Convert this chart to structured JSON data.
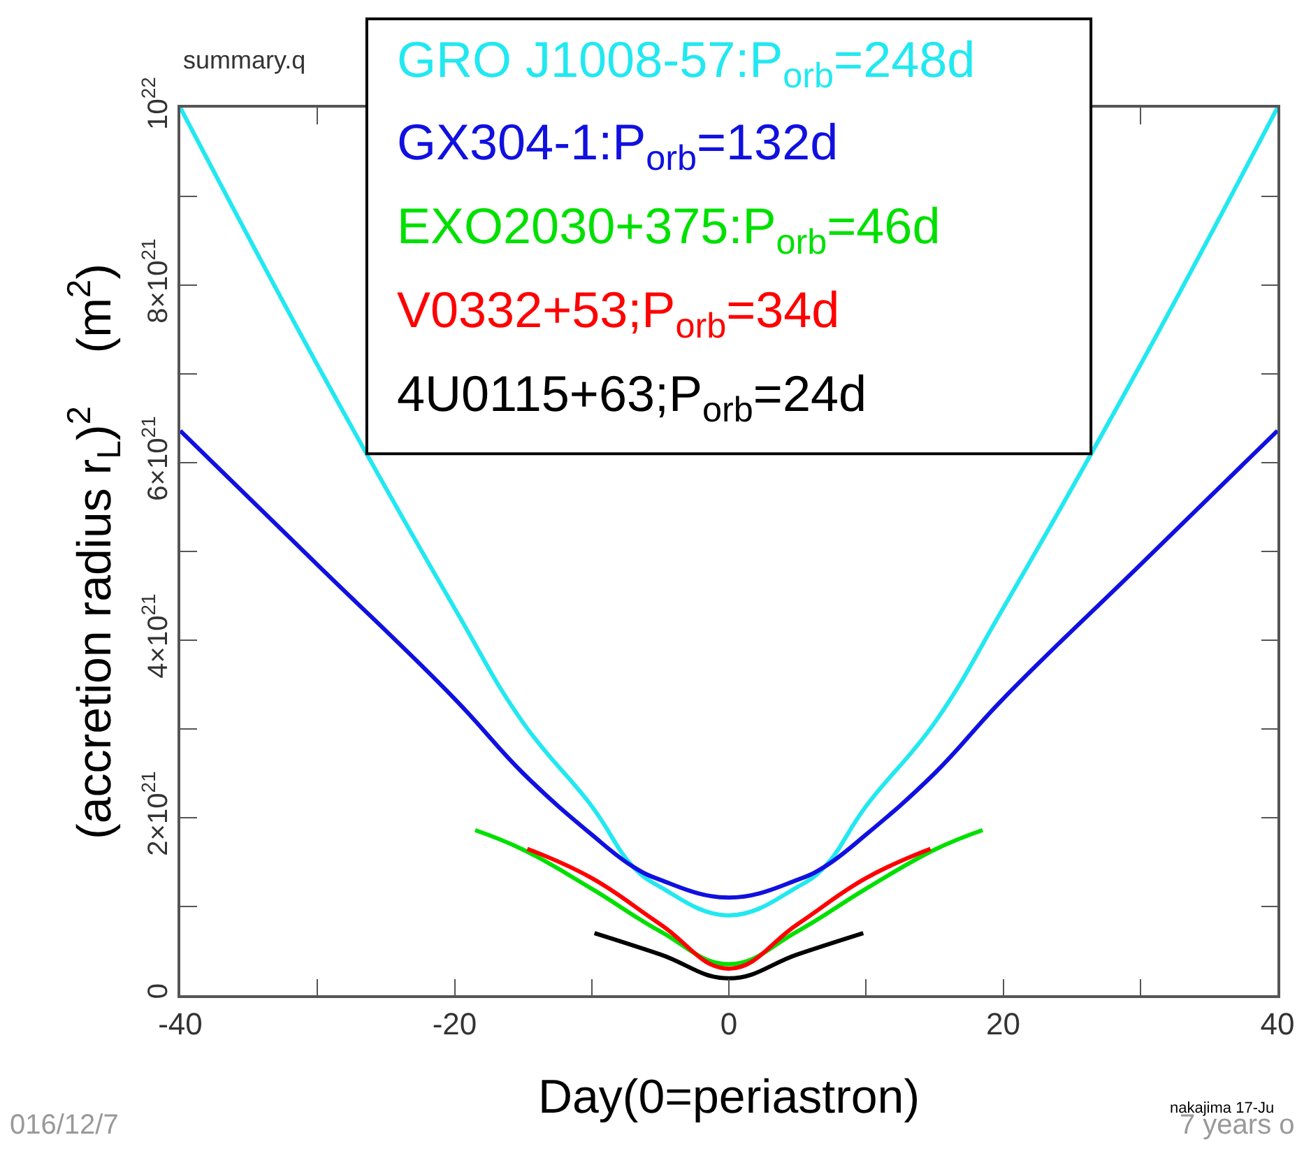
{
  "chart_data": {
    "type": "line",
    "xlabel": "Day(0=periastron)",
    "ylabel": "(accretion radius r$_{L}$)$^{2}$    (m$^{2}$)",
    "xlim": [
      -40,
      40
    ],
    "xticks": [
      -40,
      {
        "value": -30,
        "label": null
      },
      -20,
      {
        "value": -10,
        "label": null
      },
      0,
      {
        "value": 10,
        "label": null
      },
      20,
      {
        "value": 30,
        "label": null
      },
      40
    ],
    "ylim": [
      0,
      1e+22
    ],
    "yticks": [
      0,
      {
        "value": 1e+21,
        "label": null
      },
      {
        "value": 2e+21,
        "label": "2×10$^{21}$"
      },
      {
        "value": 3e+21,
        "label": null
      },
      {
        "value": 4e+21,
        "label": "4×10$^{21}$"
      },
      {
        "value": 5e+21,
        "label": null
      },
      {
        "value": 6e+21,
        "label": "6×10$^{21}$"
      },
      {
        "value": 7e+21,
        "label": null
      },
      {
        "value": 8e+21,
        "label": "8×10$^{21}$"
      },
      {
        "value": 9e+21,
        "label": null
      },
      {
        "value": 1e+22,
        "label": "10$^{22}$"
      }
    ],
    "legend": "top",
    "marker": "none",
    "line_style": "solid",
    "series": [
      {
        "name": "GRO J1008-57:P$_{orb}$=248d",
        "color": "#22e8f0",
        "x": [
          -40,
          -30,
          -20,
          -15,
          -10,
          -7,
          -5,
          0,
          5,
          7,
          10,
          15,
          20,
          30,
          40
        ],
        "values": [
          1e+22,
          7.1e+21,
          4.36e+21,
          3.07e+21,
          2.13e+21,
          1.45e+21,
          1.22e+21,
          9e+20,
          1.22e+21,
          1.45e+21,
          2.13e+21,
          3.07e+21,
          4.36e+21,
          7.1e+21,
          1e+22
        ]
      },
      {
        "name": "GX304-1:P$_{orb}$=132d",
        "color": "#1010e0",
        "x": [
          -40,
          -30,
          -20,
          -15,
          -10,
          -7,
          -5,
          0,
          5,
          7,
          10,
          15,
          20,
          30,
          40
        ],
        "values": [
          6.36e+21,
          4.85e+21,
          3.34e+21,
          2.5e+21,
          1.81e+21,
          1.45e+21,
          1.3e+21,
          1.1e+21,
          1.3e+21,
          1.45e+21,
          1.81e+21,
          2.5e+21,
          3.34e+21,
          4.85e+21,
          6.36e+21
        ]
      },
      {
        "name": "EXO2030+375:P$_{orb}$=46d",
        "color": "#00e000",
        "x": [
          -18.5,
          -15,
          -10,
          -5,
          0,
          5,
          10,
          15,
          18.5
        ],
        "values": [
          1.86e+21,
          1.64e+21,
          1.2e+21,
          7.2e+20,
          3.5e+20,
          7.2e+20,
          1.2e+21,
          1.64e+21,
          1.86e+21
        ]
      },
      {
        "name": "V0332+53;P$_{orb}$=34d",
        "color": "#ff0000",
        "x": [
          -14.7,
          -10,
          -5,
          0,
          5,
          10,
          14.7
        ],
        "values": [
          1.65e+21,
          1.32e+21,
          8e+20,
          3e+20,
          8e+20,
          1.32e+21,
          1.65e+21
        ]
      },
      {
        "name": "4U0115+63;P$_{orb}$=24d",
        "color": "#000000",
        "x": [
          -9.8,
          -5,
          0,
          5,
          9.8
        ],
        "values": [
          7e+20,
          4.6e+20,
          1.9e+20,
          4.6e+20,
          7e+20
        ]
      }
    ],
    "annotations": [
      "summary.q",
      "nakajima 17-Ju",
      "016/12/7",
      "7 years o"
    ]
  }
}
